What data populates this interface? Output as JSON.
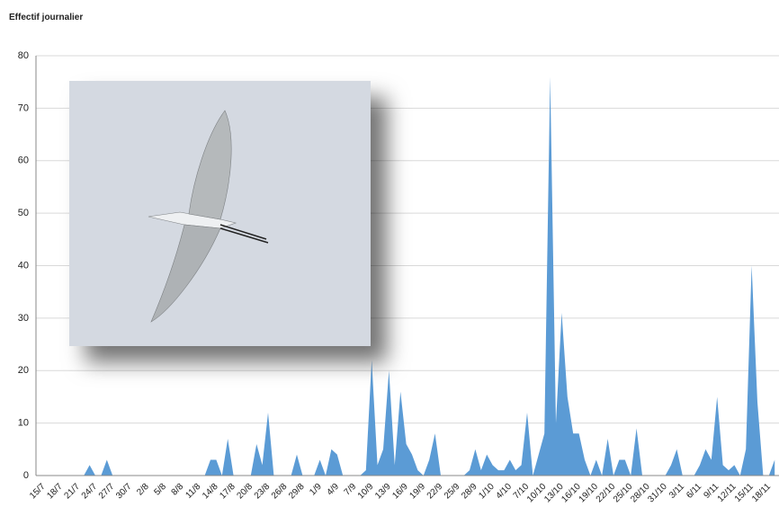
{
  "chart_data": {
    "type": "area",
    "title": "Effectif journalier",
    "color": "#5b9bd5",
    "ylim": [
      0,
      80
    ],
    "yticks": [
      0,
      10,
      20,
      30,
      40,
      50,
      60,
      70,
      80
    ],
    "grid": true,
    "categories": [
      "15/7",
      null,
      null,
      "18/7",
      null,
      null,
      "21/7",
      null,
      null,
      "24/7",
      null,
      null,
      "27/7",
      null,
      null,
      "30/7",
      null,
      null,
      "2/8",
      null,
      null,
      "5/8",
      null,
      null,
      "8/8",
      null,
      null,
      "11/8",
      null,
      null,
      "14/8",
      null,
      null,
      "17/8",
      null,
      null,
      "20/8",
      null,
      null,
      "23/8",
      null,
      null,
      "26/8",
      null,
      null,
      "29/8",
      null,
      null,
      "1/9",
      null,
      null,
      "4/9",
      null,
      null,
      "7/9",
      null,
      null,
      "10/9",
      null,
      null,
      "13/9",
      null,
      null,
      "16/9",
      null,
      null,
      "19/9",
      null,
      null,
      "22/9",
      null,
      null,
      "25/9",
      null,
      null,
      "28/9",
      null,
      null,
      "1/10",
      null,
      null,
      "4/10",
      null,
      null,
      "7/10",
      null,
      null,
      "10/10",
      null,
      null,
      "13/10",
      null,
      null,
      "16/10",
      null,
      null,
      "19/10",
      null,
      null,
      "22/10",
      null,
      null,
      "25/10",
      null,
      null,
      "28/10",
      null,
      null,
      "31/10",
      null,
      null,
      "3/11",
      null,
      null,
      "6/11",
      null,
      null,
      "9/11",
      null,
      null,
      "12/11",
      null,
      null,
      "15/11",
      null,
      null,
      "18/11",
      null,
      null
    ],
    "values": [
      0,
      0,
      0,
      0,
      0,
      0,
      0,
      0,
      0,
      2,
      0,
      0,
      3,
      0,
      0,
      0,
      0,
      0,
      0,
      0,
      0,
      0,
      0,
      0,
      0,
      0,
      0,
      0,
      0,
      0,
      3,
      3,
      0,
      7,
      0,
      0,
      0,
      0,
      6,
      2,
      12,
      0,
      0,
      0,
      0,
      4,
      0,
      0,
      0,
      3,
      0,
      5,
      4,
      0,
      0,
      0,
      0,
      1,
      22,
      2,
      5,
      20,
      2,
      16,
      6,
      4,
      1,
      0,
      3,
      8,
      0,
      0,
      0,
      0,
      0,
      1,
      5,
      1,
      4,
      2,
      1,
      1,
      3,
      1,
      2,
      12,
      0,
      4,
      8,
      76,
      10,
      31,
      15,
      8,
      8,
      3,
      0,
      3,
      0,
      7,
      0,
      3,
      3,
      0,
      9,
      0,
      0,
      0,
      0,
      0,
      2,
      5,
      0,
      0,
      0,
      2,
      5,
      3,
      15,
      2,
      1,
      2,
      0,
      5,
      40,
      14,
      0,
      0,
      3
    ]
  }
}
